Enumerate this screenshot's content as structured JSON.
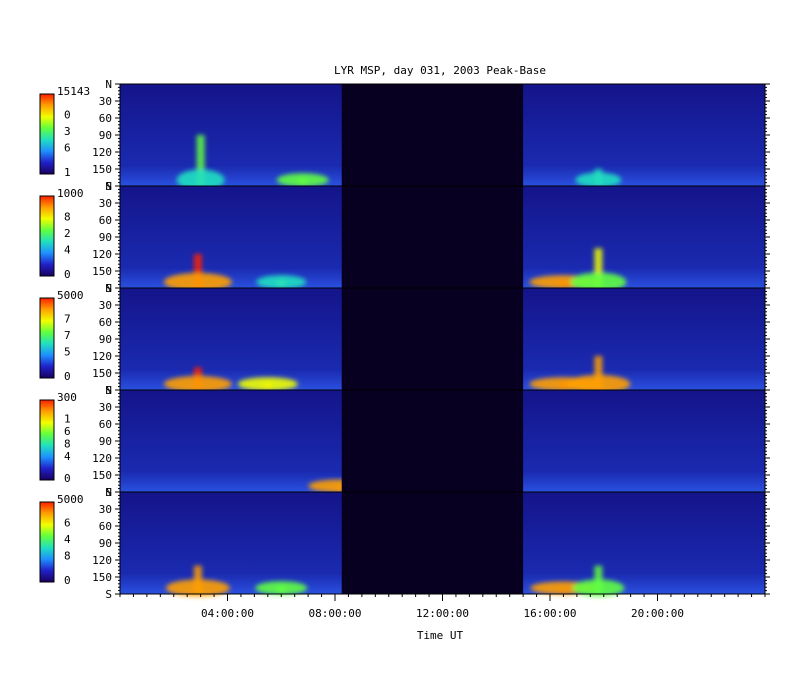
{
  "chart_data": {
    "type": "heatmap",
    "title": "LYR MSP, day 031, 2003 Peak-Base",
    "xlabel": "Time UT",
    "x_ticks": [
      "04:00:00",
      "08:00:00",
      "12:00:00",
      "16:00:00",
      "20:00:00"
    ],
    "x_tick_hours": [
      4,
      8,
      12,
      16,
      20
    ],
    "x_range_hours": [
      0,
      24
    ],
    "y_ticks": [
      "N",
      "30",
      "60",
      "90",
      "120",
      "150",
      "S"
    ],
    "y_tick_values": [
      0,
      30,
      60,
      90,
      120,
      150,
      180
    ],
    "y_range": [
      0,
      180
    ],
    "colormap": [
      "#1a0060",
      "#2020c8",
      "#1e90ff",
      "#20e0c0",
      "#60ff40",
      "#f0ff00",
      "#ffa000",
      "#ff2000"
    ],
    "no_data_color": "#080020",
    "data_gap_hours": [
      8.25,
      15.0
    ],
    "panels": [
      {
        "colorbar_max": "15143",
        "colorbar_labels": [
          "0",
          "3",
          "6"
        ],
        "colorbar_min": "1",
        "events": [
          {
            "time_hours": 3.0,
            "elevation_deg": 90,
            "intensity": 0.5
          },
          {
            "time_hours": 6.8,
            "elevation_deg": 165,
            "intensity": 0.6
          },
          {
            "time_hours": 17.8,
            "elevation_deg": 150,
            "intensity": 0.45
          }
        ]
      },
      {
        "colorbar_max": "1000",
        "colorbar_labels": [
          "8",
          "2",
          "4"
        ],
        "colorbar_min": "0",
        "events": [
          {
            "time_hours": 2.9,
            "elevation_deg": 120,
            "intensity": 1.0
          },
          {
            "time_hours": 6.0,
            "elevation_deg": 165,
            "intensity": 0.55
          },
          {
            "time_hours": 16.5,
            "elevation_deg": 165,
            "intensity": 1.0
          },
          {
            "time_hours": 17.8,
            "elevation_deg": 110,
            "intensity": 0.7
          }
        ]
      },
      {
        "colorbar_max": "5000",
        "colorbar_labels": [
          "7",
          "7",
          "5"
        ],
        "colorbar_min": "0",
        "events": [
          {
            "time_hours": 2.9,
            "elevation_deg": 140,
            "intensity": 1.0
          },
          {
            "time_hours": 5.5,
            "elevation_deg": 165,
            "intensity": 0.8
          },
          {
            "time_hours": 16.5,
            "elevation_deg": 165,
            "intensity": 1.0
          },
          {
            "time_hours": 17.8,
            "elevation_deg": 120,
            "intensity": 0.9
          }
        ]
      },
      {
        "colorbar_max": "300",
        "colorbar_labels": [
          "1",
          "6",
          "8",
          "4"
        ],
        "colorbar_min": "0",
        "events": [
          {
            "time_hours": 8.2,
            "elevation_deg": 170,
            "intensity": 0.9
          }
        ]
      },
      {
        "colorbar_max": "5000",
        "colorbar_labels": [
          "6",
          "4",
          "8"
        ],
        "colorbar_min": "0",
        "events": [
          {
            "time_hours": 2.9,
            "elevation_deg": 130,
            "intensity": 0.9
          },
          {
            "time_hours": 6.0,
            "elevation_deg": 165,
            "intensity": 0.6
          },
          {
            "time_hours": 16.5,
            "elevation_deg": 170,
            "intensity": 0.95
          },
          {
            "time_hours": 17.8,
            "elevation_deg": 130,
            "intensity": 0.6
          }
        ]
      }
    ]
  }
}
